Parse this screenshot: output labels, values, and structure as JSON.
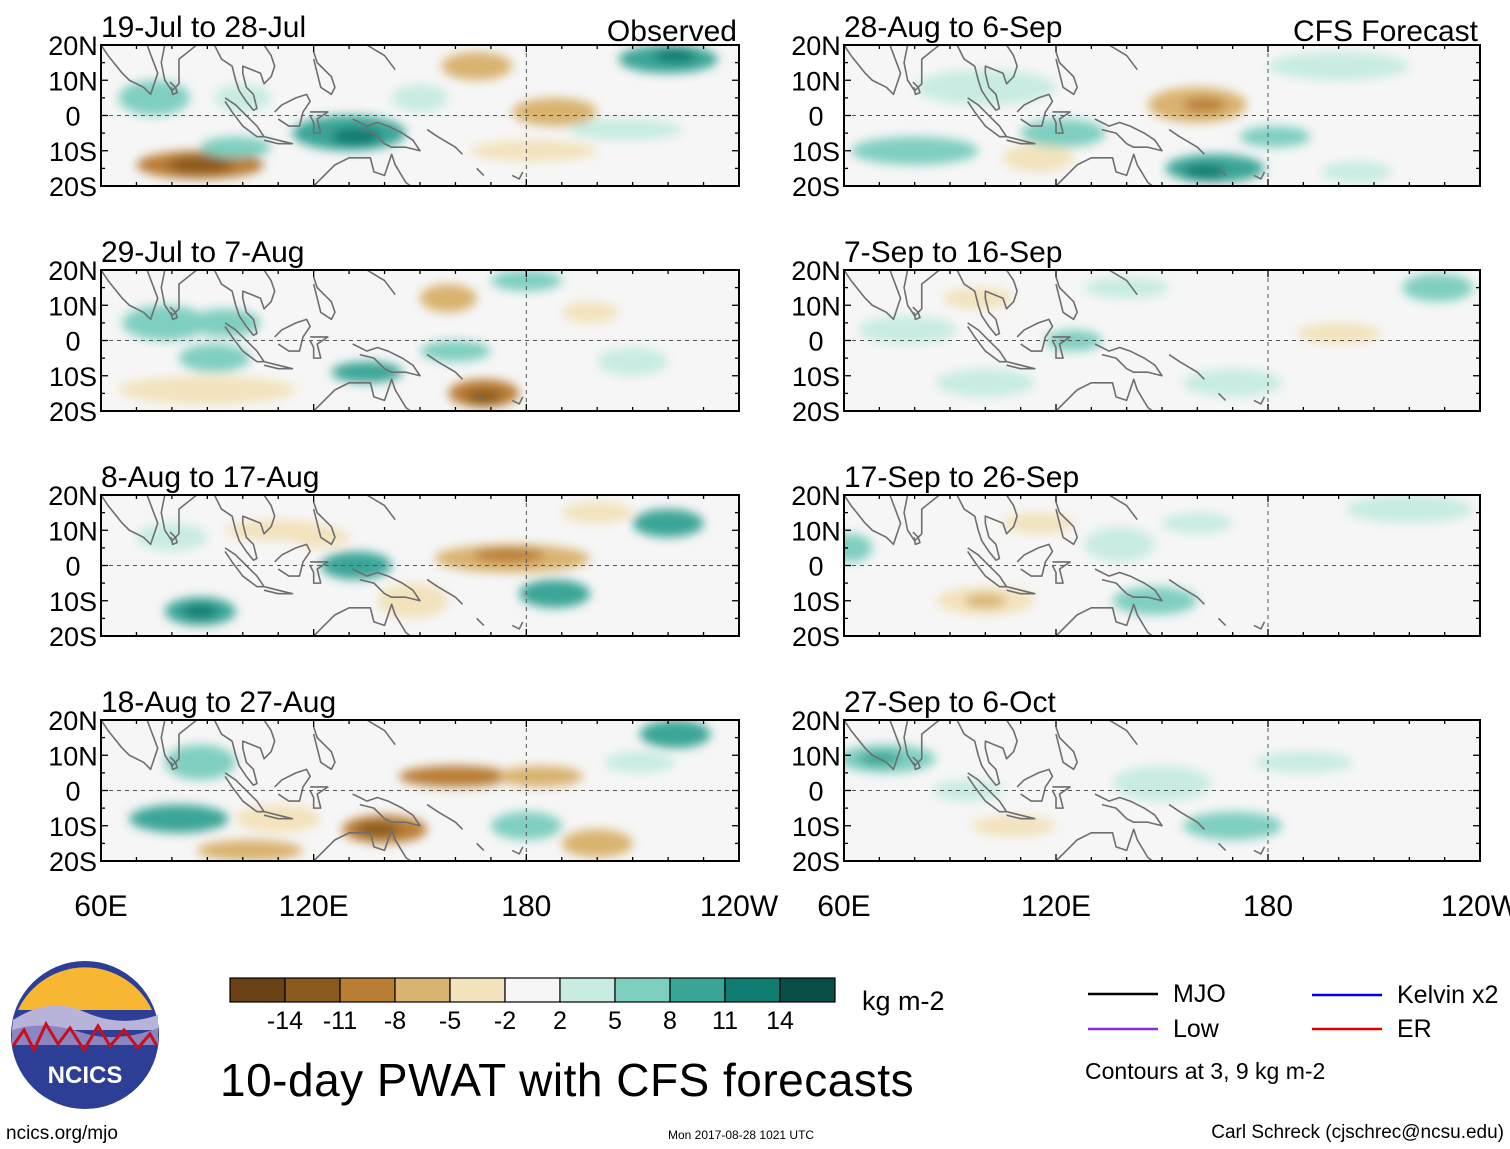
{
  "chart_data": {
    "type": "heatmap",
    "title": "10-day PWAT with CFS forecasts",
    "units": "kg m-2",
    "x_ticks": [
      "60E",
      "120E",
      "180",
      "120W"
    ],
    "y_ticks": [
      "20N",
      "10N",
      "0",
      "10S",
      "20S"
    ],
    "xlim": [
      60,
      240
    ],
    "ylim": [
      -20,
      20
    ],
    "columns": [
      {
        "label": "Observed",
        "panels": [
          {
            "period": "19-Jul to 28-Jul",
            "anomalies": [
              {
                "lon": 88,
                "lat": -14,
                "rx": 18,
                "ry": 4,
                "v": -11
              },
              {
                "lon": 88,
                "lat": -14,
                "rx": 9,
                "ry": 2.5,
                "v": -14
              },
              {
                "lon": 130,
                "lat": -5,
                "rx": 16,
                "ry": 5,
                "v": 8
              },
              {
                "lon": 132,
                "lat": -6,
                "rx": 7,
                "ry": 2.5,
                "v": 11
              },
              {
                "lon": 98,
                "lat": -9,
                "rx": 10,
                "ry": 3,
                "v": 5
              },
              {
                "lon": 75,
                "lat": 5,
                "rx": 10,
                "ry": 5,
                "v": 6
              },
              {
                "lon": 100,
                "lat": 5,
                "rx": 8,
                "ry": 4,
                "v": 4
              },
              {
                "lon": 166,
                "lat": 14,
                "rx": 10,
                "ry": 4,
                "v": -6
              },
              {
                "lon": 188,
                "lat": 1,
                "rx": 12,
                "ry": 4,
                "v": -7
              },
              {
                "lon": 182,
                "lat": -10,
                "rx": 18,
                "ry": 3,
                "v": -5
              },
              {
                "lon": 220,
                "lat": 16,
                "rx": 14,
                "ry": 4,
                "v": 9
              },
              {
                "lon": 222,
                "lat": 17,
                "rx": 6,
                "ry": 2,
                "v": 12
              },
              {
                "lon": 150,
                "lat": 5,
                "rx": 8,
                "ry": 4,
                "v": 4
              },
              {
                "lon": 208,
                "lat": -4,
                "rx": 16,
                "ry": 3,
                "v": 3
              }
            ]
          },
          {
            "period": "29-Jul to 7-Aug",
            "anomalies": [
              {
                "lon": 90,
                "lat": -14,
                "rx": 25,
                "ry": 4,
                "v": -5
              },
              {
                "lon": 168,
                "lat": -15,
                "rx": 10,
                "ry": 4,
                "v": -10
              },
              {
                "lon": 168,
                "lat": -16,
                "rx": 5,
                "ry": 2,
                "v": -13
              },
              {
                "lon": 135,
                "lat": -9,
                "rx": 10,
                "ry": 3,
                "v": 10
              },
              {
                "lon": 78,
                "lat": 5,
                "rx": 12,
                "ry": 5,
                "v": 5
              },
              {
                "lon": 95,
                "lat": 5,
                "rx": 10,
                "ry": 4,
                "v": 6
              },
              {
                "lon": 92,
                "lat": -5,
                "rx": 10,
                "ry": 4,
                "v": 6
              },
              {
                "lon": 158,
                "lat": 12,
                "rx": 8,
                "ry": 4,
                "v": -6
              },
              {
                "lon": 180,
                "lat": 17,
                "rx": 10,
                "ry": 3,
                "v": 7
              },
              {
                "lon": 160,
                "lat": -3,
                "rx": 10,
                "ry": 3,
                "v": 5
              },
              {
                "lon": 210,
                "lat": -6,
                "rx": 10,
                "ry": 4,
                "v": 4
              },
              {
                "lon": 198,
                "lat": 8,
                "rx": 8,
                "ry": 3,
                "v": -3
              }
            ]
          },
          {
            "period": "8-Aug to 17-Aug",
            "anomalies": [
              {
                "lon": 88,
                "lat": -13,
                "rx": 10,
                "ry": 4,
                "v": 10
              },
              {
                "lon": 88,
                "lat": -13,
                "rx": 5,
                "ry": 2,
                "v": 13
              },
              {
                "lon": 132,
                "lat": 0,
                "rx": 10,
                "ry": 4,
                "v": 8
              },
              {
                "lon": 188,
                "lat": -8,
                "rx": 10,
                "ry": 4,
                "v": 10
              },
              {
                "lon": 176,
                "lat": 2,
                "rx": 22,
                "ry": 4,
                "v": -6
              },
              {
                "lon": 175,
                "lat": 3,
                "rx": 10,
                "ry": 2,
                "v": -10
              },
              {
                "lon": 148,
                "lat": -10,
                "rx": 10,
                "ry": 5,
                "v": -5
              },
              {
                "lon": 110,
                "lat": 10,
                "rx": 15,
                "ry": 3,
                "v": -4
              },
              {
                "lon": 220,
                "lat": 12,
                "rx": 10,
                "ry": 4,
                "v": 8
              },
              {
                "lon": 80,
                "lat": 8,
                "rx": 10,
                "ry": 4,
                "v": 4
              },
              {
                "lon": 200,
                "lat": 15,
                "rx": 10,
                "ry": 3,
                "v": -4
              },
              {
                "lon": 122,
                "lat": 8,
                "rx": 8,
                "ry": 3,
                "v": -4
              }
            ]
          },
          {
            "period": "18-Aug to 27-Aug",
            "anomalies": [
              {
                "lon": 160,
                "lat": 4,
                "rx": 16,
                "ry": 3,
                "v": -9
              },
              {
                "lon": 184,
                "lat": 4,
                "rx": 12,
                "ry": 3,
                "v": -8
              },
              {
                "lon": 140,
                "lat": -11,
                "rx": 12,
                "ry": 4,
                "v": -10
              },
              {
                "lon": 138,
                "lat": -11,
                "rx": 6,
                "ry": 2,
                "v": -13
              },
              {
                "lon": 110,
                "lat": -8,
                "rx": 12,
                "ry": 4,
                "v": -5
              },
              {
                "lon": 82,
                "lat": -8,
                "rx": 14,
                "ry": 4,
                "v": 8
              },
              {
                "lon": 88,
                "lat": 8,
                "rx": 10,
                "ry": 5,
                "v": 5
              },
              {
                "lon": 222,
                "lat": 16,
                "rx": 10,
                "ry": 4,
                "v": 10
              },
              {
                "lon": 200,
                "lat": -15,
                "rx": 10,
                "ry": 4,
                "v": -6
              },
              {
                "lon": 102,
                "lat": -17,
                "rx": 15,
                "ry": 3,
                "v": -6
              },
              {
                "lon": 180,
                "lat": -10,
                "rx": 10,
                "ry": 4,
                "v": 5
              },
              {
                "lon": 212,
                "lat": 8,
                "rx": 10,
                "ry": 3,
                "v": 4
              }
            ]
          }
        ]
      },
      {
        "label": "CFS Forecast",
        "panels": [
          {
            "period": "28-Aug to 6-Sep",
            "anomalies": [
              {
                "lon": 160,
                "lat": 3,
                "rx": 14,
                "ry": 5,
                "v": -7
              },
              {
                "lon": 162,
                "lat": 3,
                "rx": 6,
                "ry": 2,
                "v": -10
              },
              {
                "lon": 165,
                "lat": -15,
                "rx": 14,
                "ry": 4,
                "v": 10
              },
              {
                "lon": 162,
                "lat": -16,
                "rx": 6,
                "ry": 2,
                "v": 13
              },
              {
                "lon": 182,
                "lat": -6,
                "rx": 10,
                "ry": 3,
                "v": 7
              },
              {
                "lon": 80,
                "lat": -10,
                "rx": 18,
                "ry": 4,
                "v": 6
              },
              {
                "lon": 115,
                "lat": -12,
                "rx": 10,
                "ry": 4,
                "v": -5
              },
              {
                "lon": 122,
                "lat": -5,
                "rx": 12,
                "ry": 4,
                "v": 5
              },
              {
                "lon": 100,
                "lat": 8,
                "rx": 20,
                "ry": 5,
                "v": 4
              },
              {
                "lon": 200,
                "lat": 14,
                "rx": 20,
                "ry": 4,
                "v": 4
              },
              {
                "lon": 205,
                "lat": -16,
                "rx": 10,
                "ry": 3,
                "v": 4
              }
            ]
          },
          {
            "period": "7-Sep to 16-Sep",
            "anomalies": [
              {
                "lon": 125,
                "lat": 0,
                "rx": 8,
                "ry": 3,
                "v": 6
              },
              {
                "lon": 228,
                "lat": 15,
                "rx": 10,
                "ry": 4,
                "v": 7
              },
              {
                "lon": 100,
                "lat": -12,
                "rx": 14,
                "ry": 4,
                "v": 4
              },
              {
                "lon": 78,
                "lat": 3,
                "rx": 14,
                "ry": 4,
                "v": 4
              },
              {
                "lon": 140,
                "lat": 15,
                "rx": 12,
                "ry": 3,
                "v": 4
              },
              {
                "lon": 170,
                "lat": -12,
                "rx": 14,
                "ry": 4,
                "v": 4
              },
              {
                "lon": 98,
                "lat": 12,
                "rx": 10,
                "ry": 3,
                "v": -3
              },
              {
                "lon": 200,
                "lat": 2,
                "rx": 12,
                "ry": 3,
                "v": -3
              }
            ]
          },
          {
            "period": "17-Sep to 26-Sep",
            "anomalies": [
              {
                "lon": 100,
                "lat": -10,
                "rx": 14,
                "ry": 4,
                "v": -5
              },
              {
                "lon": 100,
                "lat": -10,
                "rx": 6,
                "ry": 2,
                "v": -7
              },
              {
                "lon": 62,
                "lat": 5,
                "rx": 6,
                "ry": 4,
                "v": 7
              },
              {
                "lon": 148,
                "lat": -10,
                "rx": 12,
                "ry": 4,
                "v": 5
              },
              {
                "lon": 138,
                "lat": 6,
                "rx": 10,
                "ry": 5,
                "v": 4
              },
              {
                "lon": 160,
                "lat": 12,
                "rx": 10,
                "ry": 3,
                "v": 3
              },
              {
                "lon": 220,
                "lat": 16,
                "rx": 18,
                "ry": 4,
                "v": 3
              },
              {
                "lon": 115,
                "lat": 12,
                "rx": 10,
                "ry": 3,
                "v": -3
              }
            ]
          },
          {
            "period": "27-Sep to 6-Oct",
            "anomalies": [
              {
                "lon": 72,
                "lat": 9,
                "rx": 14,
                "ry": 4,
                "v": 7
              },
              {
                "lon": 70,
                "lat": 9,
                "rx": 6,
                "ry": 2,
                "v": 10
              },
              {
                "lon": 150,
                "lat": 2,
                "rx": 14,
                "ry": 5,
                "v": 4
              },
              {
                "lon": 170,
                "lat": -10,
                "rx": 14,
                "ry": 4,
                "v": 5
              },
              {
                "lon": 108,
                "lat": -10,
                "rx": 12,
                "ry": 3,
                "v": -4
              },
              {
                "lon": 190,
                "lat": 8,
                "rx": 14,
                "ry": 3,
                "v": 3
              },
              {
                "lon": 95,
                "lat": 0,
                "rx": 10,
                "ry": 3,
                "v": 3
              }
            ]
          }
        ]
      }
    ],
    "colorbar": {
      "tick_labels": [
        "-14",
        "-11",
        "-8",
        "-5",
        "-2",
        "2",
        "5",
        "8",
        "11",
        "14"
      ],
      "colors": [
        "#6a4216",
        "#8b5a1e",
        "#b97d34",
        "#d9b36f",
        "#f3e3bd",
        "#f6f6f6",
        "#c8ece2",
        "#7fcfc0",
        "#3aa597",
        "#107c72",
        "#084f47"
      ],
      "thresholds": [
        -14,
        -11,
        -8,
        -5,
        -2,
        2,
        5,
        8,
        11,
        14
      ]
    },
    "contour_legend": [
      {
        "label": "MJO",
        "color": "#000000"
      },
      {
        "label": "Kelvin x2",
        "color": "#0000ee"
      },
      {
        "label": "Low",
        "color": "#8a2be2"
      },
      {
        "label": "ER",
        "color": "#e00000"
      }
    ],
    "contour_note": "Contours at 3, 9 kg m-2"
  },
  "logo": {
    "text": "NCICS"
  },
  "footer": {
    "website": "ncics.org/mjo",
    "timestamp": "Mon 2017-08-28 1021 UTC",
    "credit": "Carl Schreck (cjschrec@ncsu.edu)"
  }
}
